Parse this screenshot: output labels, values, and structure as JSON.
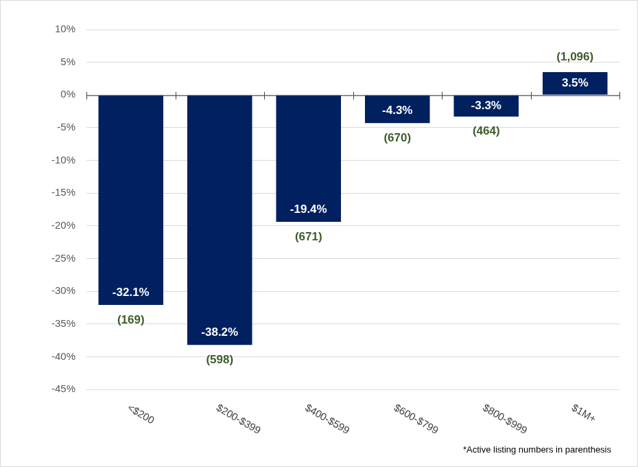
{
  "chart_data": {
    "type": "bar",
    "categories": [
      "<$200",
      "$200-$399",
      "$400-$599",
      "$600-$799",
      "$800-$999",
      "$1M+"
    ],
    "values": [
      -32.1,
      -38.2,
      -19.4,
      -4.3,
      -3.3,
      3.5
    ],
    "value_labels": [
      "-32.1%",
      "-38.2%",
      "-19.4%",
      "-4.3%",
      "-3.3%",
      "3.5%"
    ],
    "listings": [
      169,
      598,
      671,
      670,
      464,
      1096
    ],
    "listings_labels": [
      "(169)",
      "(598)",
      "(671)",
      "(670)",
      "(464)",
      "(1,096)"
    ],
    "footnote": "*Active listing numbers in parenthesis",
    "color": "#002060",
    "ylim": [
      -45,
      10
    ],
    "yticks": [
      {
        "value": -45,
        "label": "-45%"
      },
      {
        "value": -40,
        "label": "-40%"
      },
      {
        "value": -35,
        "label": "-35%"
      },
      {
        "value": -30,
        "label": "-30%"
      },
      {
        "value": -25,
        "label": "-25%"
      },
      {
        "value": -20,
        "label": "-20%"
      },
      {
        "value": -15,
        "label": "-15%"
      },
      {
        "value": -10,
        "label": "-10%"
      },
      {
        "value": -5,
        "label": "-5%"
      },
      {
        "value": 0,
        "label": "0%"
      },
      {
        "value": 5,
        "label": "5%"
      },
      {
        "value": 10,
        "label": "10%"
      }
    ],
    "grid": true,
    "data_labels": true
  }
}
